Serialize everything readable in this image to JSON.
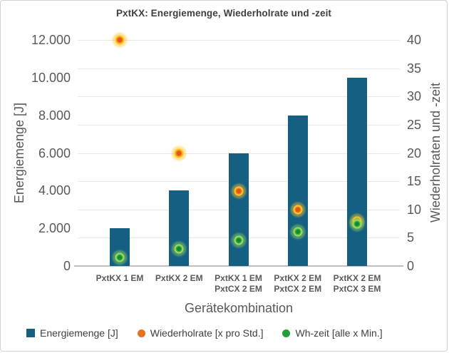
{
  "window": {
    "title": "PxtKX: Energiemenge, Wiederholrate und -zeit"
  },
  "chart_data": {
    "type": "bar",
    "subtype": "combo-bar-scatter-dual-axis",
    "title": "PxtKX: Energiemenge, Wiederholrate und -zeit",
    "categories": [
      "PxtKX 1 EM",
      "PxtKX 2 EM",
      "PxtKX 1 EM\nPxtCX 2 EM",
      "PxtKX 2 EM\nPxtCX 2 EM",
      "PxtKX 2 EM\nPxtCX 3 EM"
    ],
    "xlabel": "Gerätekombination",
    "ylabel_left": "Energiemenge [J]",
    "ylabel_right": "Wiederholraten und -zeit",
    "ylim_left": [
      0,
      12000
    ],
    "ylim_right": [
      0,
      40
    ],
    "left_ticks": [
      "0",
      "2.000",
      "4.000",
      "6.000",
      "8.000",
      "10.000",
      "12.000"
    ],
    "right_ticks": [
      "0",
      "5",
      "10",
      "15",
      "20",
      "25",
      "30",
      "35",
      "40"
    ],
    "grid": true,
    "legend_position": "bottom",
    "series": [
      {
        "name": "Energiemenge [J]",
        "type": "bar",
        "axis": "left",
        "color": "#156082",
        "values": [
          2000,
          4000,
          6000,
          8000,
          10000
        ]
      },
      {
        "name": "Wiederholrate [x pro Std.]",
        "type": "scatter",
        "axis": "right",
        "color": "#e8701e",
        "glow": "#ffc000",
        "values": [
          40,
          20,
          13.3,
          10,
          8
        ]
      },
      {
        "name": "Wh-zeit [alle x Min.]",
        "type": "scatter",
        "axis": "right",
        "color": "#21a038",
        "glow": "#92d050",
        "values": [
          1.5,
          3,
          4.5,
          6,
          7.5
        ]
      }
    ]
  }
}
